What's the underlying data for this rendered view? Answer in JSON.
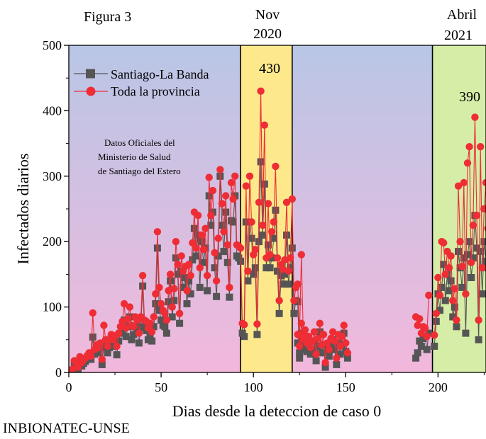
{
  "figure_label": "Figura 3",
  "footer": "INBIONATEC-UNSE",
  "source_note": [
    "Datos Oficiales del",
    "Ministerio de Salud",
    "de Santiago del Estero"
  ],
  "period_labels": [
    {
      "line1": "Nov",
      "line2": "2020"
    },
    {
      "line1": "Abril",
      "line2": "2021"
    }
  ],
  "peak_labels": [
    {
      "text": "430",
      "x": 103,
      "y": 430
    },
    {
      "text": "390",
      "x": 219,
      "y": 390
    }
  ],
  "chart_data": {
    "type": "line",
    "xlabel": "Dias desde la deteccion de caso 0",
    "ylabel": "Infectados diarios",
    "xlim": [
      0,
      226
    ],
    "ylim": [
      0,
      500
    ],
    "xticks": [
      0,
      50,
      100,
      150,
      200
    ],
    "yticks": [
      0,
      100,
      200,
      300,
      400,
      500
    ],
    "legend_position": "top-left",
    "background_bands": [
      {
        "x0": 0,
        "x1": 93,
        "gradient": [
          "#b9c6e6",
          "#f2b8dc"
        ]
      },
      {
        "x0": 93,
        "x1": 121,
        "color": "#fde98c"
      },
      {
        "x0": 121,
        "x1": 197,
        "gradient": [
          "#b9c6e6",
          "#f2b8dc"
        ]
      },
      {
        "x0": 197,
        "x1": 226,
        "color": "#d5eda6"
      }
    ],
    "series": [
      {
        "name": "Santiago-La Banda",
        "color": "#555555",
        "marker": "square",
        "segments": [
          {
            "x0": 1,
            "values": [
              1,
              3,
              12,
              8,
              5,
              18,
              10,
              14,
              17,
              22,
              25,
              20,
              54,
              28,
              35,
              30,
              38,
              12,
              42,
              40,
              30,
              38,
              52,
              44,
              40,
              27,
              48,
              60,
              62,
              80,
              55,
              70,
              85,
              50,
              58,
              70,
              65,
              45,
              70,
              132,
              68,
              64,
              50,
              58,
              48,
              70,
              105,
              190,
              95,
              80,
              72,
              70,
              60,
              108,
              140,
              85,
              110,
              175,
              150,
              75,
              155,
              130,
              145,
              105,
              140,
              120,
              172,
              220,
              178,
              210,
              130,
              200,
              168,
              190,
              125,
              270,
              225,
              245,
              160,
              116,
              178,
              300,
              225,
              185,
              245,
              168,
              115,
              232,
              230,
              270,
              178,
              175,
              170,
              60,
              55,
              230,
              140,
              230,
              205,
              150,
              160,
              58,
              200,
              322,
              210,
              288,
              160,
              195,
              160,
              175,
              205,
              248,
              155,
              90,
              148,
              135,
              150,
              210,
              135,
              160,
              190,
              90,
              110,
              108,
              22,
              50,
              35
            ]
          },
          {
            "x0": 124,
            "values": [
              45,
              30,
              60,
              40,
              55,
              32,
              45,
              28,
              35,
              48,
              18,
              40,
              62,
              30,
              42,
              8,
              32,
              25,
              40,
              50,
              35,
              12,
              45,
              28,
              42,
              60,
              32,
              22
            ]
          },
          {
            "x0": 188,
            "values": [
              22,
              30,
              48,
              40,
              52,
              55,
              35,
              60
            ]
          },
          {
            "x0": 198,
            "values": [
              40,
              78,
              120,
              95,
              130,
              165,
              110,
              150,
              125,
              140,
              85,
              100,
              70,
              185,
              160,
              130,
              175,
              60,
              180,
              200,
              145,
              175,
              240,
              190,
              50,
              185,
              120,
              200,
              170,
              160,
              150
            ]
          }
        ]
      },
      {
        "name": "Toda la provincia",
        "color": "#ee2d35",
        "marker": "circle",
        "segments": [
          {
            "x0": 1,
            "values": [
              2,
              5,
              18,
              15,
              8,
              24,
              15,
              20,
              22,
              26,
              30,
              25,
              91,
              35,
              42,
              38,
              45,
              20,
              72,
              50,
              40,
              50,
              58,
              50,
              56,
              40,
              60,
              70,
              78,
              105,
              68,
              82,
              100,
              72,
              70,
              85,
              80,
              60,
              85,
              148,
              80,
              78,
              68,
              75,
              62,
              85,
              120,
              215,
              130,
              105,
              95,
              90,
              80,
              125,
              150,
              100,
              128,
              200,
              165,
              90,
              178,
              155,
              162,
              125,
              165,
              148,
              198,
              245,
              190,
              240,
              160,
              210,
              188,
              220,
              148,
              298,
              240,
              278,
              183,
              140,
              205,
              310,
              258,
              215,
              270,
              195,
              130,
              290,
              265,
              300,
              195,
              193,
              190,
              75,
              73,
              285,
              155,
              300,
              230,
              180,
              188,
              74,
              260,
              430,
              225,
              378,
              175,
              258,
              180,
              215,
              230,
              315,
              175,
              110,
              165,
              158,
              172,
              260,
              155,
              175,
              265,
              110,
              130,
              135,
              58,
              180,
              60
            ]
          },
          {
            "x0": 124,
            "values": [
              58,
              40,
              75,
              50,
              65,
              45,
              55,
              38,
              48,
              62,
              28,
              52,
              75,
              42,
              58,
              15,
              45,
              35,
              52,
              62,
              48,
              22,
              58,
              40,
              55,
              72,
              45,
              30
            ]
          },
          {
            "x0": 188,
            "values": [
              85,
              72,
              82,
              60,
              70,
              68,
              55,
              118
            ]
          },
          {
            "x0": 198,
            "values": [
              57,
              90,
              145,
              118,
              200,
              198,
              150,
              185,
              160,
              178,
              110,
              128,
              80,
              285,
              200,
              162,
              290,
              120,
              320,
              345,
              168,
              225,
              390,
              240,
              80,
              345,
              160,
              250,
              290,
              220,
              280
            ]
          }
        ]
      }
    ]
  }
}
